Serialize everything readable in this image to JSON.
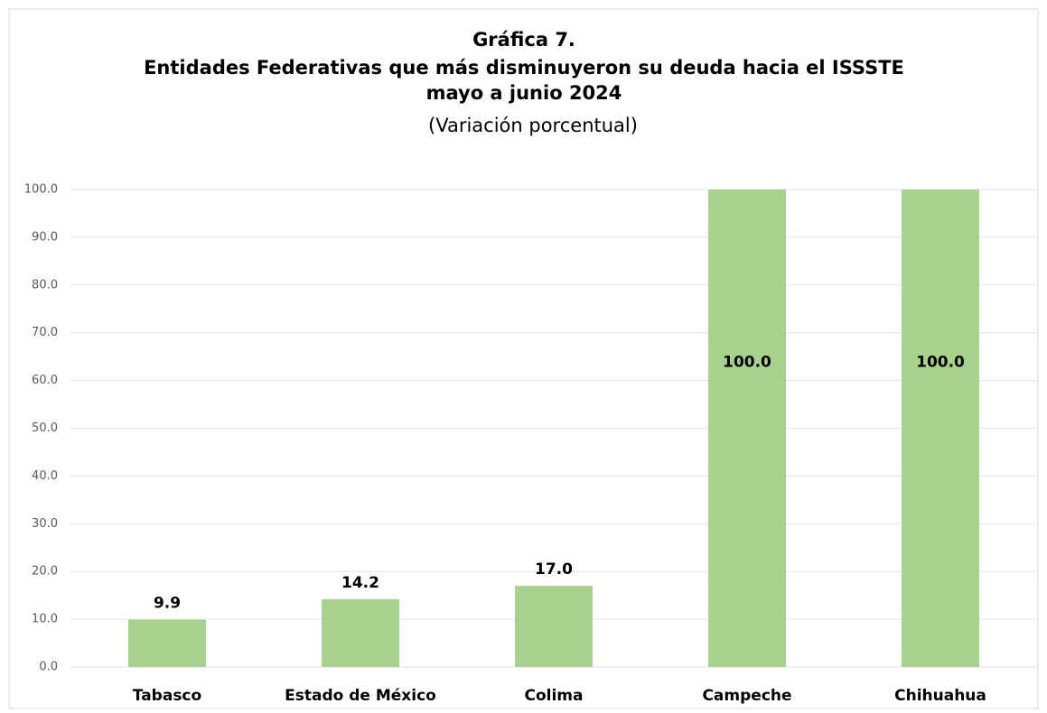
{
  "chart_data": {
    "type": "bar",
    "title": [
      "Gráfica 7.",
      "Entidades Federativas que más disminuyeron su deuda hacia el ISSSTE",
      "mayo a junio 2024"
    ],
    "subtitle": "(Variación porcentual)",
    "categories": [
      "Tabasco",
      "Estado de México",
      "Colima",
      "Campeche",
      "Chihuahua"
    ],
    "values": [
      9.9,
      14.2,
      17.0,
      100.0,
      100.0
    ],
    "value_labels": [
      "9.9",
      "14.2",
      "17.0",
      "100.0",
      "100.0"
    ],
    "color": "#a9d18e",
    "ylim": [
      0,
      100
    ],
    "yticks": [
      {
        "value": 0,
        "label": "0.0"
      },
      {
        "value": 10,
        "label": "10.0"
      },
      {
        "value": 20,
        "label": "20.0"
      },
      {
        "value": 30,
        "label": "30.0"
      },
      {
        "value": 40,
        "label": "40.0"
      },
      {
        "value": 50,
        "label": "50.0"
      },
      {
        "value": 60,
        "label": "60.0"
      },
      {
        "value": 70,
        "label": "70.0"
      },
      {
        "value": 80,
        "label": "80.0"
      },
      {
        "value": 90,
        "label": "90.0"
      },
      {
        "value": 100,
        "label": "100.0"
      }
    ],
    "grid": true
  }
}
